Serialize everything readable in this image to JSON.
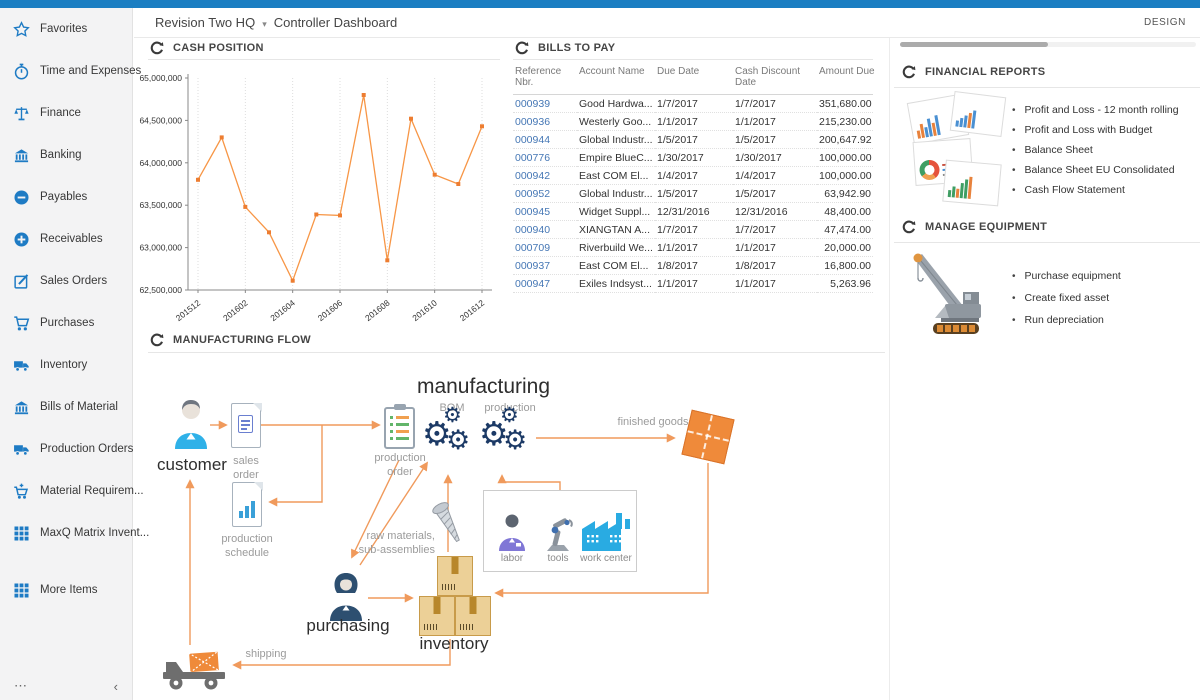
{
  "topbar": {
    "design_label": "DESIGN"
  },
  "breadcrumb": {
    "company": "Revision Two HQ",
    "page": "Controller Dashboard"
  },
  "sidebar": {
    "items": [
      {
        "label": "Favorites",
        "icon": "star"
      },
      {
        "label": "Time and Expenses",
        "icon": "stopwatch"
      },
      {
        "label": "Finance",
        "icon": "scales"
      },
      {
        "label": "Banking",
        "icon": "bank"
      },
      {
        "label": "Payables",
        "icon": "minus-circle"
      },
      {
        "label": "Receivables",
        "icon": "plus-circle"
      },
      {
        "label": "Sales Orders",
        "icon": "edit"
      },
      {
        "label": "Purchases",
        "icon": "cart"
      },
      {
        "label": "Inventory",
        "icon": "truck"
      },
      {
        "label": "Bills of Material",
        "icon": "bank"
      },
      {
        "label": "Production Orders",
        "icon": "truck"
      },
      {
        "label": "Material Requirem...",
        "icon": "cart-plus"
      },
      {
        "label": "MaxQ Matrix Invent...",
        "icon": "grid"
      },
      {
        "label": "More Items",
        "icon": "grid",
        "gap": true
      }
    ],
    "footer": {
      "more": "⋯",
      "collapse": "‹"
    }
  },
  "widgets": {
    "cash_position": {
      "title": "CASH POSITION"
    },
    "bills_to_pay": {
      "title": "BILLS TO PAY",
      "columns": [
        "Reference Nbr.",
        "Account Name",
        "Due Date",
        "Cash Discount Date",
        "Amount Due"
      ],
      "rows": [
        {
          "ref": "000939",
          "account": "Good Hardwa...",
          "due": "1/7/2017",
          "discount": "1/7/2017",
          "amount": "351,680.00"
        },
        {
          "ref": "000936",
          "account": "Westerly Goo...",
          "due": "1/1/2017",
          "discount": "1/1/2017",
          "amount": "215,230.00"
        },
        {
          "ref": "000944",
          "account": "Global Industr...",
          "due": "1/5/2017",
          "discount": "1/5/2017",
          "amount": "200,647.92"
        },
        {
          "ref": "000776",
          "account": "Empire BlueC...",
          "due": "1/30/2017",
          "discount": "1/30/2017",
          "amount": "100,000.00"
        },
        {
          "ref": "000942",
          "account": "East COM El...",
          "due": "1/4/2017",
          "discount": "1/4/2017",
          "amount": "100,000.00"
        },
        {
          "ref": "000952",
          "account": "Global Industr...",
          "due": "1/5/2017",
          "discount": "1/5/2017",
          "amount": "63,942.90"
        },
        {
          "ref": "000945",
          "account": "Widget Suppl...",
          "due": "12/31/2016",
          "discount": "12/31/2016",
          "amount": "48,400.00"
        },
        {
          "ref": "000940",
          "account": "XIANGTAN A...",
          "due": "1/7/2017",
          "discount": "1/7/2017",
          "amount": "47,474.00"
        },
        {
          "ref": "000709",
          "account": "Riverbuild We...",
          "due": "1/1/2017",
          "discount": "1/1/2017",
          "amount": "20,000.00"
        },
        {
          "ref": "000937",
          "account": "East COM El...",
          "due": "1/8/2017",
          "discount": "1/8/2017",
          "amount": "16,800.00"
        },
        {
          "ref": "000947",
          "account": "Exiles Indsyst...",
          "due": "1/1/2017",
          "discount": "1/1/2017",
          "amount": "5,263.96"
        }
      ]
    },
    "financial_reports": {
      "title": "FINANCIAL REPORTS",
      "links": [
        "Profit and Loss - 12 month rolling",
        "Profit and Loss with Budget",
        "Balance Sheet",
        "Balance Sheet EU Consolidated",
        "Cash Flow Statement"
      ]
    },
    "manage_equipment": {
      "title": "MANAGE EQUIPMENT",
      "links": [
        "Purchase equipment",
        "Create fixed asset",
        "Run depreciation"
      ]
    },
    "manufacturing_flow": {
      "title": "MANUFACTURING FLOW",
      "labels": {
        "manufacturing": "manufacturing",
        "bom": "BOM",
        "production": "production",
        "customer": "customer",
        "sales_order": "sales order",
        "production_schedule": "production schedule",
        "production_order": "production order",
        "finished_goods": "finished goods",
        "raw_materials": "raw materials,\nsub-assemblies",
        "labor": "labor",
        "tools": "tools",
        "work_center": "work center",
        "purchasing": "purchasing",
        "inventory": "inventory",
        "shipping": "shipping"
      }
    }
  },
  "chart_data": {
    "type": "line",
    "title": "CASH POSITION",
    "x": [
      "201512",
      "201601",
      "201602",
      "201603",
      "201604",
      "201605",
      "201606",
      "201607",
      "201608",
      "201609",
      "201610",
      "201611",
      "201612"
    ],
    "x_tick_labels": [
      "201512",
      "201602",
      "201604",
      "201606",
      "201608",
      "201610",
      "201612"
    ],
    "values": [
      63800000,
      64300000,
      63480000,
      63180000,
      62610000,
      63390000,
      63380000,
      64800000,
      62850000,
      64520000,
      63860000,
      63750000,
      64430000
    ],
    "ylim": [
      62500000,
      65000000
    ],
    "y_ticks": [
      "65,000,000",
      "64,500,000",
      "64,000,000",
      "63,500,000",
      "63,000,000",
      "62,500,000"
    ],
    "xlabel": "",
    "ylabel": "",
    "grid": true,
    "legend": "none",
    "line_color": "#f79646",
    "marker_color": "#ed7d31"
  },
  "colors": {
    "topbar": "#1b7ec2",
    "sidebar_icon": "#1e7bc4",
    "link": "#4577b5",
    "flow_arrow": "#f09a5c",
    "gears": "#1c3a66"
  }
}
